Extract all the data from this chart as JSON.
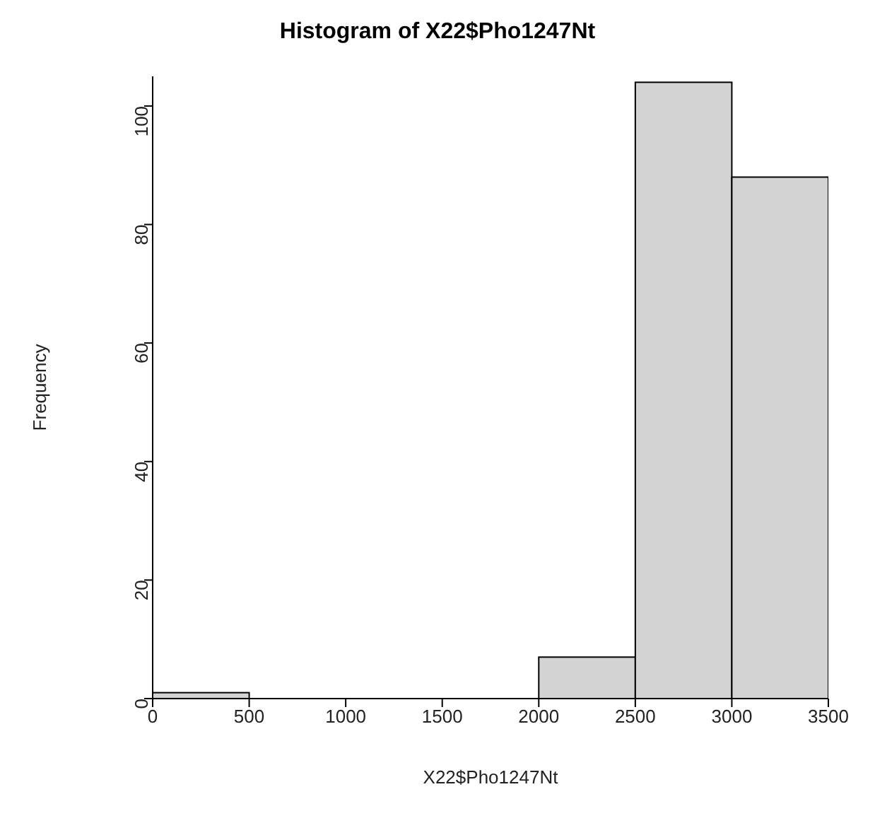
{
  "chart_data": {
    "type": "histogram",
    "title": "Histogram of X22$Pho1247Nt",
    "xlabel": "X22$Pho1247Nt",
    "ylabel": "Frequency",
    "bins": [
      0,
      500,
      1000,
      1500,
      2000,
      2500,
      3000,
      3500
    ],
    "values": [
      1,
      0,
      0,
      0,
      7,
      104,
      88
    ],
    "color": "#d3d3d3",
    "xlim": [
      0,
      3500
    ],
    "xticks": [
      0,
      500,
      1000,
      1500,
      2000,
      2500,
      3000,
      3500
    ],
    "ylim": [
      0,
      105
    ],
    "yticks": [
      0,
      20,
      40,
      60,
      80,
      100
    ],
    "grid": false,
    "legend": false
  }
}
